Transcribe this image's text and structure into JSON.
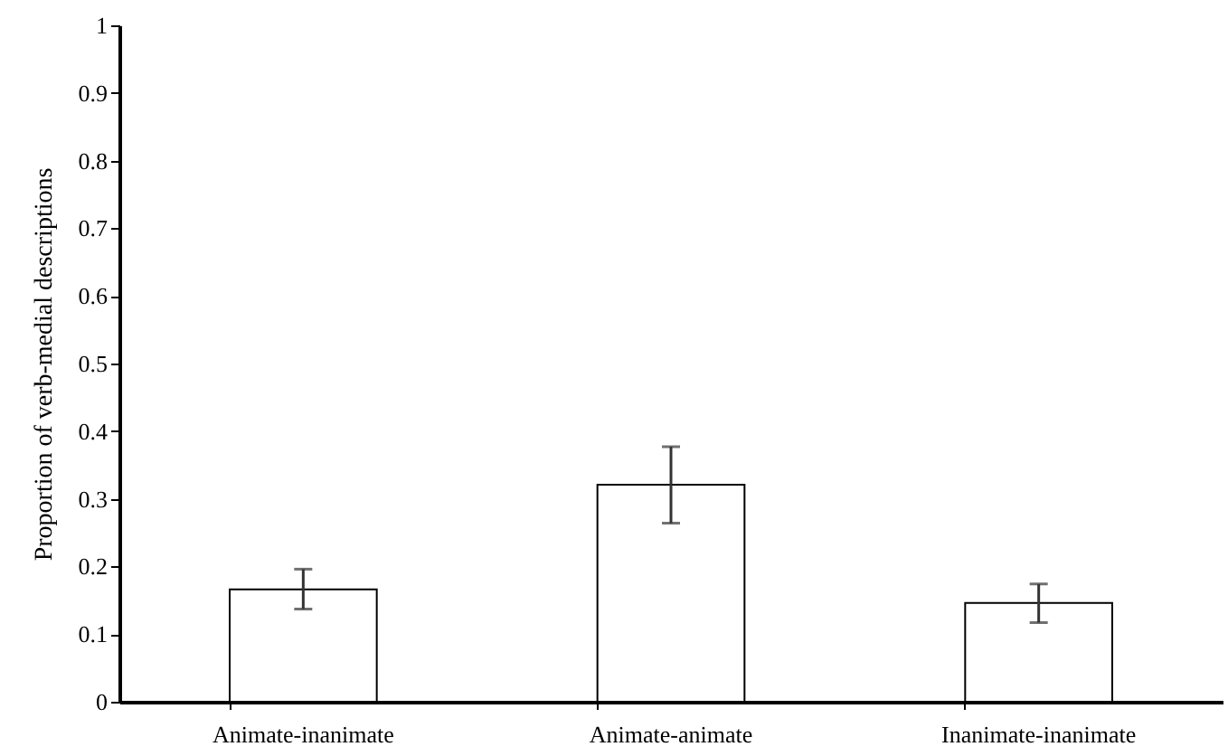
{
  "chart_data": {
    "type": "bar",
    "ylabel": "Proportion of verb-medial descriptions",
    "categories": [
      "Animate-inanimate",
      "Animate-animate",
      "Inanimate-inanimate"
    ],
    "values": [
      0.166,
      0.321,
      0.146
    ],
    "errors": [
      [
        0.137,
        0.196
      ],
      [
        0.264,
        0.377
      ],
      [
        0.117,
        0.174
      ]
    ],
    "color": "#ffffff",
    "ylim": [
      0,
      1
    ],
    "yticks": [
      0,
      0.1,
      0.2,
      0.3,
      0.4,
      0.5,
      0.6,
      0.7,
      0.8,
      0.9,
      1
    ]
  }
}
